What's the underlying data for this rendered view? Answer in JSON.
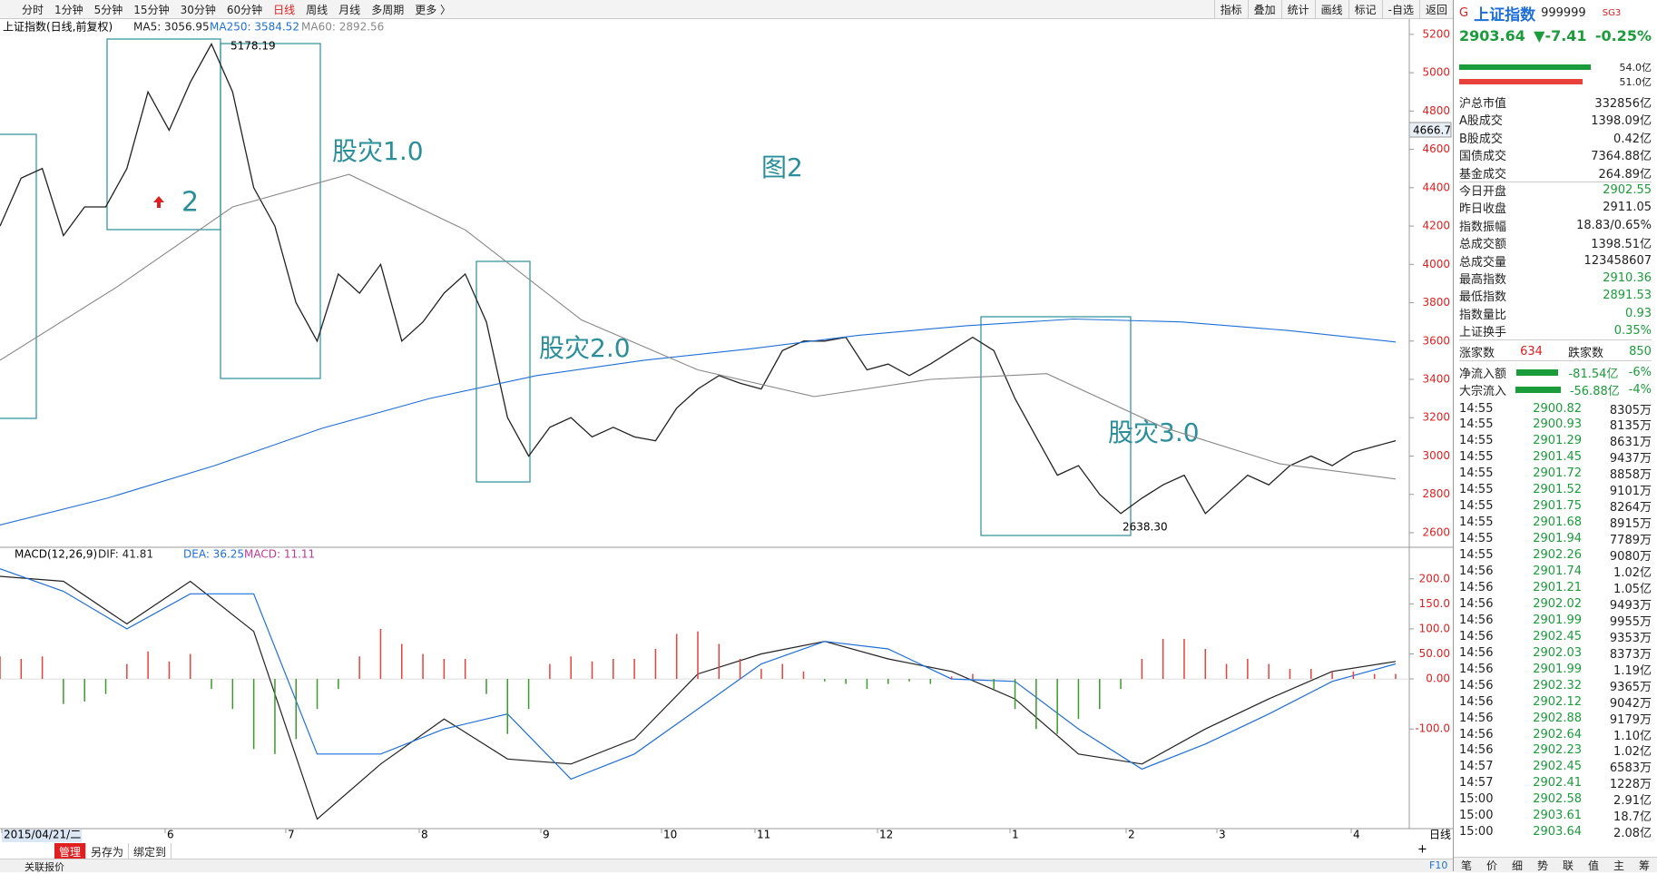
{
  "toolbar": {
    "periods": [
      "分时",
      "1分钟",
      "5分钟",
      "15分钟",
      "30分钟",
      "60分钟",
      "日线",
      "周线",
      "月线",
      "多周期",
      "更多 〉"
    ],
    "active_period": 6,
    "tools": [
      "指标",
      "叠加",
      "统计",
      "画线",
      "标记",
      "-自选",
      "返回"
    ]
  },
  "chart_data": [
    {
      "type": "line",
      "title": "上证指数(日线,前复权)",
      "ylim": [
        2524,
        5280
      ],
      "yticks": [
        5200,
        5000,
        4800,
        4600,
        4400,
        4200,
        4000,
        3800,
        3600,
        3400,
        3200,
        3000,
        2800,
        2600
      ],
      "series": [
        {
          "name": "MA5: 3056.95",
          "color": "#222222",
          "values": [
            4200,
            4450,
            4500,
            4150,
            4300,
            4300,
            4500,
            4900,
            4700,
            4950,
            5150,
            4900,
            4400,
            4200,
            3800,
            3600,
            3950,
            3850,
            4000,
            3600,
            3700,
            3850,
            3950,
            3700,
            3200,
            3000,
            3150,
            3200,
            3100,
            3150,
            3100,
            3080,
            3250,
            3350,
            3420,
            3380,
            3350,
            3550,
            3600,
            3600,
            3620,
            3450,
            3480,
            3420,
            3480,
            3550,
            3620,
            3550,
            3300,
            3100,
            2900,
            2950,
            2800,
            2700,
            2780,
            2850,
            2900,
            2700,
            2800,
            2900,
            2850,
            2950,
            3000,
            2950,
            3020,
            3050,
            3080
          ]
        },
        {
          "name": "MA250: 3584.52",
          "color": "#1e6fd9",
          "values": [
            2640,
            2780,
            2950,
            3145,
            3300,
            3420,
            3500,
            3560,
            3630,
            3680,
            3715,
            3700,
            3655,
            3595
          ]
        },
        {
          "name": "MA60: 2892.56",
          "color": "#888888",
          "values": [
            3500,
            3880,
            4300,
            4470,
            4180,
            3710,
            3450,
            3310,
            3400,
            3430,
            3150,
            2960,
            2880
          ]
        }
      ],
      "annotations": [
        "股灾1.0",
        "股灾2.0",
        "股灾3.0",
        "图2",
        "2",
        "5178.19",
        "2638.30"
      ],
      "cursor_price": "4666.7"
    },
    {
      "type": "macd",
      "title": "MACD(12,26,9)",
      "ylim": [
        -299,
        263
      ],
      "yticks": [
        {
          "value": 200,
          "label": "200.0"
        },
        {
          "value": 150,
          "label": "150.0"
        },
        {
          "value": 100,
          "label": "100.0"
        },
        {
          "value": 50,
          "label": "50.00"
        },
        {
          "value": 0,
          "label": "0.00"
        },
        {
          "value": -100,
          "label": "-100.0"
        }
      ],
      "series": [
        {
          "name": "DIF: 41.81",
          "color": "#222222",
          "values": [
            205,
            195,
            110,
            195,
            95,
            -280,
            -170,
            -80,
            -160,
            -170,
            -120,
            10,
            50,
            75,
            40,
            15,
            -40,
            -150,
            -170,
            -100,
            -40,
            15,
            35
          ]
        },
        {
          "name": "DEA: 36.25",
          "color": "#1e6fd9",
          "values": [
            220,
            175,
            100,
            170,
            170,
            -150,
            -150,
            -100,
            -70,
            -200,
            -150,
            -60,
            30,
            75,
            60,
            0,
            -5,
            -100,
            -180,
            -130,
            -70,
            -5,
            30
          ]
        },
        {
          "name": "MACD: 11.11",
          "color": "#c0399a",
          "up_color": "#e8413c",
          "down_color": "#3a9a2c",
          "values": [
            45,
            40,
            45,
            -50,
            -45,
            -30,
            30,
            55,
            35,
            50,
            -20,
            -60,
            -140,
            -150,
            -120,
            -60,
            -20,
            45,
            100,
            70,
            50,
            40,
            40,
            -30,
            -110,
            -60,
            30,
            45,
            35,
            40,
            40,
            60,
            90,
            95,
            70,
            40,
            20,
            30,
            15,
            -5,
            -10,
            -20,
            -10,
            -5,
            -10,
            5,
            10,
            -20,
            -60,
            -100,
            -110,
            -80,
            -60,
            -20,
            40,
            80,
            80,
            60,
            30,
            40,
            30,
            20,
            20,
            15,
            15,
            10,
            10
          ]
        }
      ]
    }
  ],
  "footer": {
    "date_labels": [
      "2015/04/21/二",
      "6",
      "7",
      "8",
      "9",
      "10",
      "11",
      "12",
      "1",
      "2",
      "3",
      "4"
    ],
    "period": "日线",
    "tabs": [
      "管理",
      "另存为",
      "绑定到"
    ],
    "plus": "+",
    "status": "关联报价",
    "f10": "F10"
  },
  "panel": {
    "flag": "G",
    "name": "上证指数",
    "code": "999999",
    "badge": "SG3",
    "price": "2903.64",
    "change": "▼-7.41",
    "pct": "-0.25%",
    "bars": [
      "54.0亿",
      "51.0亿"
    ],
    "stats": [
      {
        "label": "沪总市值",
        "value": "332856亿",
        "color": "#222"
      },
      {
        "label": "A股成交",
        "value": "1398.09亿",
        "color": "#222"
      },
      {
        "label": "B股成交",
        "value": "0.42亿",
        "color": "#222"
      },
      {
        "label": "国债成交",
        "value": "7364.88亿",
        "color": "#222"
      },
      {
        "label": "基金成交",
        "value": "264.89亿",
        "color": "#222"
      },
      {
        "label": "今日开盘",
        "value": "2902.55",
        "color": "#1a9c3a"
      },
      {
        "label": "昨日收盘",
        "value": "2911.05",
        "color": "#222"
      },
      {
        "label": "指数振幅",
        "value": "18.83/0.65%",
        "color": "#222"
      },
      {
        "label": "总成交额",
        "value": "1398.51亿",
        "color": "#222"
      },
      {
        "label": "总成交量",
        "value": "123458607",
        "color": "#222"
      },
      {
        "label": "最高指数",
        "value": "2910.36",
        "color": "#1a9c3a"
      },
      {
        "label": "最低指数",
        "value": "2891.53",
        "color": "#1a9c3a"
      },
      {
        "label": "指数量比",
        "value": "0.93",
        "color": "#1a9c3a"
      },
      {
        "label": "上证换手",
        "value": "0.35%",
        "color": "#1a9c3a"
      }
    ],
    "breadth": [
      "涨家数",
      "634",
      "跌家数",
      "850"
    ],
    "flows": [
      [
        "净流入额",
        "-81.54亿",
        "-6%"
      ],
      [
        "大宗流入",
        "-56.88亿",
        "-4%"
      ]
    ],
    "price_color": "#1a9c3a",
    "ticks": [
      [
        "14:55",
        "2900.82",
        "8305万"
      ],
      [
        "14:55",
        "2900.93",
        "8135万"
      ],
      [
        "14:55",
        "2901.29",
        "8631万"
      ],
      [
        "14:55",
        "2901.45",
        "9437万"
      ],
      [
        "14:55",
        "2901.72",
        "8858万"
      ],
      [
        "14:55",
        "2901.52",
        "9101万"
      ],
      [
        "14:55",
        "2901.75",
        "8264万"
      ],
      [
        "14:55",
        "2901.68",
        "8915万"
      ],
      [
        "14:55",
        "2901.94",
        "7789万"
      ],
      [
        "14:55",
        "2902.26",
        "9080万"
      ],
      [
        "14:56",
        "2901.74",
        "1.02亿"
      ],
      [
        "14:56",
        "2901.21",
        "1.05亿"
      ],
      [
        "14:56",
        "2902.02",
        "9493万"
      ],
      [
        "14:56",
        "2901.99",
        "9955万"
      ],
      [
        "14:56",
        "2902.45",
        "9353万"
      ],
      [
        "14:56",
        "2902.03",
        "8373万"
      ],
      [
        "14:56",
        "2901.99",
        "1.19亿"
      ],
      [
        "14:56",
        "2902.32",
        "9365万"
      ],
      [
        "14:56",
        "2902.12",
        "9042万"
      ],
      [
        "14:56",
        "2902.88",
        "9179万"
      ],
      [
        "14:56",
        "2902.64",
        "1.10亿"
      ],
      [
        "14:56",
        "2902.23",
        "1.02亿"
      ],
      [
        "14:57",
        "2902.45",
        "6583万"
      ],
      [
        "14:57",
        "2902.41",
        "1228万"
      ],
      [
        "15:00",
        "2902.58",
        "2.91亿"
      ],
      [
        "15:00",
        "2903.61",
        "18.7亿"
      ],
      [
        "15:00",
        "2903.64",
        "2.08亿"
      ]
    ],
    "tabs": [
      "笔",
      "价",
      "细",
      "势",
      "联",
      "值",
      "主",
      "筹"
    ]
  }
}
